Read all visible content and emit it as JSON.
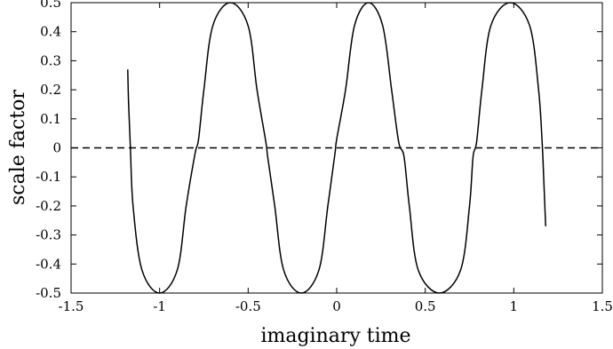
{
  "chart_data": {
    "type": "line",
    "title": "",
    "xlabel": "imaginary time",
    "ylabel": "scale factor",
    "xlim": [
      -1.5,
      1.5
    ],
    "ylim": [
      -0.5,
      0.5
    ],
    "grid": false,
    "xticks": [
      "-1.5",
      "-1",
      "-0.5",
      "0",
      "0.5",
      "1",
      "1.5"
    ],
    "yticks": [
      "-0.5",
      "-0.4",
      "-0.3",
      "-0.2",
      "-0.1",
      "0",
      "0.1",
      "0.2",
      "0.3",
      "0.4",
      "0.5"
    ],
    "series": [
      {
        "style": "solid",
        "color": "#000000",
        "x": [
          -1.18,
          -1.175,
          -1.165,
          -1.15,
          -1.1,
          -1.0,
          -0.9,
          -0.85,
          -0.8,
          -0.78,
          -0.75,
          -0.7,
          -0.6,
          -0.5,
          -0.45,
          -0.4,
          -0.39,
          -0.35,
          -0.3,
          -0.2,
          -0.1,
          -0.05,
          -0.01,
          0.0,
          0.05,
          0.1,
          0.18,
          0.26,
          0.31,
          0.35,
          0.38,
          0.41,
          0.46,
          0.58,
          0.7,
          0.75,
          0.77,
          0.79,
          0.82,
          0.87,
          0.98,
          1.09,
          1.14,
          1.16,
          1.17,
          1.18
        ],
        "y": [
          0.27,
          0.15,
          0.0,
          -0.2,
          -0.42,
          -0.5,
          -0.42,
          -0.2,
          -0.02,
          0.03,
          0.2,
          0.42,
          0.5,
          0.42,
          0.2,
          0.02,
          -0.03,
          -0.2,
          -0.42,
          -0.5,
          -0.42,
          -0.2,
          -0.02,
          0.03,
          0.2,
          0.42,
          0.5,
          0.42,
          0.2,
          0.02,
          -0.03,
          -0.2,
          -0.42,
          -0.5,
          -0.42,
          -0.2,
          -0.03,
          0.02,
          0.2,
          0.42,
          0.5,
          0.42,
          0.2,
          0.02,
          -0.12,
          -0.27
        ]
      },
      {
        "style": "dashed",
        "color": "#000000",
        "x": [
          -1.5,
          1.5
        ],
        "y": [
          0,
          0
        ]
      }
    ]
  }
}
